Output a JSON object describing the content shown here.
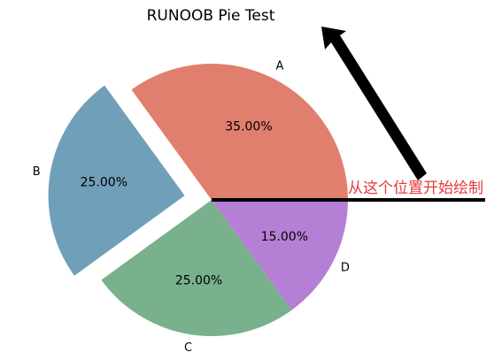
{
  "chart_data": {
    "type": "pie",
    "title": "RUNOOB Pie Test",
    "categories": [
      "A",
      "B",
      "C",
      "D"
    ],
    "values": [
      35,
      25,
      25,
      15
    ],
    "percent_labels": [
      "35.00%",
      "25.00%",
      "25.00%",
      "15.00%"
    ],
    "colors": [
      "#e07f6d",
      "#6f9fb9",
      "#79b18c",
      "#b57fd6"
    ],
    "explode": [
      0,
      0.2,
      0,
      0
    ],
    "start_angle_deg": 0,
    "direction": "counterclockwise",
    "annotation": {
      "text": "从这个位置开始绘制",
      "color": "#e8393a"
    }
  }
}
